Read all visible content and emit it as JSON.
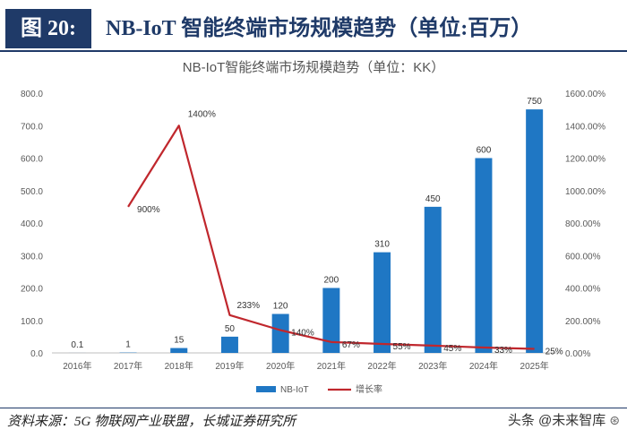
{
  "figure": {
    "label": "图 20:",
    "title": "NB-IoT 智能终端市场规模趋势（单位:百万）"
  },
  "chart_data": {
    "type": "bar+line",
    "title": "NB-IoT智能终端市场规模趋势（单位：KK）",
    "categories": [
      "2016年",
      "2017年",
      "2018年",
      "2019年",
      "2020年",
      "2021年",
      "2022年",
      "2023年",
      "2024年",
      "2025年"
    ],
    "series": [
      {
        "name": "NB-IoT",
        "kind": "bar",
        "axis": "left",
        "color": "#1f77c4",
        "values": [
          0.1,
          1,
          15,
          50,
          120,
          200,
          310,
          450,
          600,
          750
        ],
        "labels": [
          "0.1",
          "1",
          "15",
          "50",
          "120",
          "200",
          "310",
          "450",
          "600",
          "750"
        ]
      },
      {
        "name": "增长率",
        "kind": "line",
        "axis": "right",
        "color": "#c0272d",
        "values": [
          null,
          900,
          1400,
          233,
          140,
          67,
          55,
          45,
          33,
          25
        ],
        "labels": [
          "",
          "900%",
          "1400%",
          "233%",
          "140%",
          "67%",
          "55%",
          "45%",
          "33%",
          "25%"
        ]
      }
    ],
    "y_left": {
      "min": 0,
      "max": 800,
      "ticks": [
        "0.0",
        "100.0",
        "200.0",
        "300.0",
        "400.0",
        "500.0",
        "600.0",
        "700.0",
        "800.0"
      ]
    },
    "y_right": {
      "min": 0,
      "max": 1600,
      "ticks": [
        "0.00%",
        "200.00%",
        "400.00%",
        "600.00%",
        "800.00%",
        "1000.00%",
        "1200.00%",
        "1400.00%",
        "1600.00%"
      ]
    },
    "legend": {
      "position": "bottom-center",
      "items": [
        "NB-IoT",
        "增长率"
      ]
    },
    "grid": false
  },
  "source": "资料来源：5G 物联网产业联盟，长城证券研究所",
  "watermark": {
    "text": "头条 @未来智库",
    "icon": "weibo-icon"
  }
}
